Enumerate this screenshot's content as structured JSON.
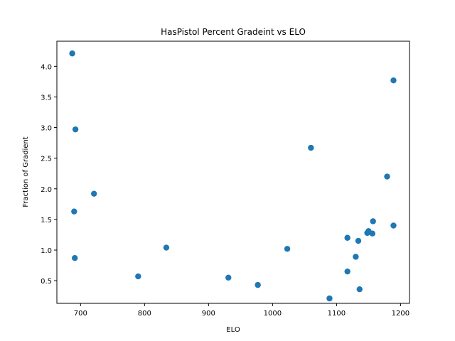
{
  "chart_data": {
    "type": "scatter",
    "title": "HasPistol Percent Gradeint vs ELO",
    "xlabel": "ELO",
    "ylabel": "Fraction of Gradient",
    "xlim": [
      663,
      1214
    ],
    "ylim": [
      0.13,
      4.41
    ],
    "xticks": [
      700,
      800,
      900,
      1000,
      1100,
      1200
    ],
    "yticks": [
      0.5,
      1.0,
      1.5,
      2.0,
      2.5,
      3.0,
      3.5,
      4.0
    ],
    "ytick_labels": [
      "0.5",
      "1.0",
      "1.5",
      "2.0",
      "2.5",
      "3.0",
      "3.5",
      "4.0"
    ],
    "grid": false,
    "marker_color": "#1f77b4",
    "points": [
      {
        "x": 687,
        "y": 4.21
      },
      {
        "x": 692,
        "y": 2.97
      },
      {
        "x": 690,
        "y": 1.63
      },
      {
        "x": 691,
        "y": 0.87
      },
      {
        "x": 721,
        "y": 1.92
      },
      {
        "x": 790,
        "y": 0.57
      },
      {
        "x": 834,
        "y": 1.04
      },
      {
        "x": 931,
        "y": 0.55
      },
      {
        "x": 977,
        "y": 0.43
      },
      {
        "x": 1023,
        "y": 1.02
      },
      {
        "x": 1060,
        "y": 2.67
      },
      {
        "x": 1089,
        "y": 0.21
      },
      {
        "x": 1117,
        "y": 1.2
      },
      {
        "x": 1117,
        "y": 0.65
      },
      {
        "x": 1130,
        "y": 0.89
      },
      {
        "x": 1134,
        "y": 1.15
      },
      {
        "x": 1136,
        "y": 0.36
      },
      {
        "x": 1148,
        "y": 1.28
      },
      {
        "x": 1150,
        "y": 1.31
      },
      {
        "x": 1156,
        "y": 1.27
      },
      {
        "x": 1157,
        "y": 1.47
      },
      {
        "x": 1179,
        "y": 2.2
      },
      {
        "x": 1189,
        "y": 3.77
      },
      {
        "x": 1189,
        "y": 1.4
      }
    ]
  }
}
